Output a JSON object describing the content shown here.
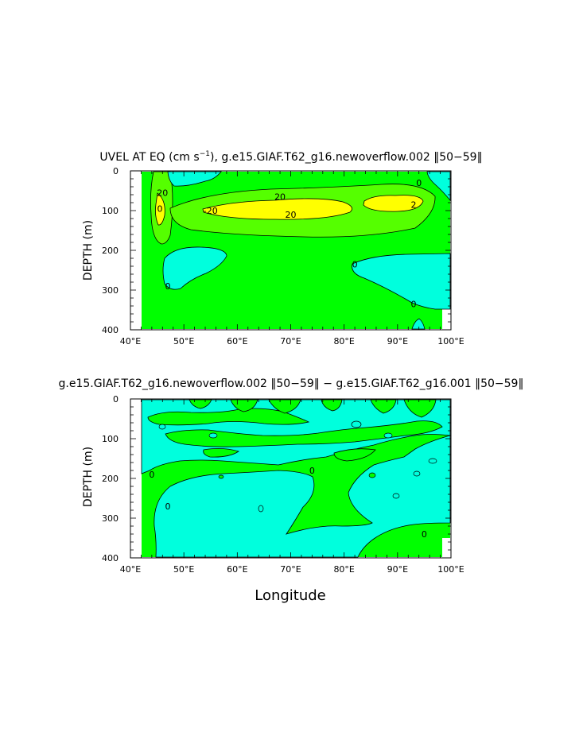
{
  "panels": [
    {
      "title_main": "UVEL AT EQ (cm s",
      "title_exp": "−1",
      "title_rest": "), g.e15.GIAF.T62_g16.newoverflow.002 ‖50−59‖"
    },
    {
      "title_main": "g.e15.GIAF.T62_g16.newoverflow.002 ‖50−59‖ − g.e15.GIAF.T62_g16.001 ‖50−59‖",
      "title_exp": "",
      "title_rest": ""
    }
  ],
  "colors": {
    "green": "#00ff00",
    "cyan": "#00ffdd",
    "yellow": "#ffff00",
    "cyan_light": "#00ffff"
  },
  "chart_data": [
    {
      "type": "contour",
      "title": "UVEL AT EQ (cm s−1), g.e15.GIAF.T62_g16.newoverflow.002 ‖50−59‖",
      "ylabel": "DEPTH (m)",
      "xlabel": "",
      "x_ticks": [
        "40°E",
        "50°E",
        "60°E",
        "70°E",
        "80°E",
        "90°E",
        "100°E"
      ],
      "y_ticks": [
        "0",
        "100",
        "200",
        "300",
        "400"
      ],
      "xlim": [
        40,
        100
      ],
      "ylim": [
        400,
        0
      ],
      "contour_labels": [
        {
          "text": "20",
          "lon": 46,
          "depth": 55
        },
        {
          "text": "0",
          "lon": 45.5,
          "depth": 95
        },
        {
          "text": "20",
          "lon": 68,
          "depth": 65
        },
        {
          "text": "20",
          "lon": 70,
          "depth": 110
        },
        {
          "text": "-20",
          "lon": 55,
          "depth": 100
        },
        {
          "text": "2",
          "lon": 93,
          "depth": 85
        },
        {
          "text": "0",
          "lon": 94,
          "depth": 30
        },
        {
          "text": "0",
          "lon": 82,
          "depth": 235
        },
        {
          "text": "0",
          "lon": 47,
          "depth": 290
        },
        {
          "text": "0",
          "lon": 93,
          "depth": 335
        }
      ]
    },
    {
      "type": "contour",
      "title": "g.e15.GIAF.T62_g16.newoverflow.002 ‖50−59‖ − g.e15.GIAF.T62_g16.001 ‖50−59‖",
      "ylabel": "DEPTH (m)",
      "xlabel": "Longitude",
      "x_ticks": [
        "40°E",
        "50°E",
        "60°E",
        "70°E",
        "80°E",
        "90°E",
        "100°E"
      ],
      "y_ticks": [
        "0",
        "100",
        "200",
        "300",
        "400"
      ],
      "xlim": [
        40,
        100
      ],
      "ylim": [
        400,
        0
      ],
      "contour_labels": [
        {
          "text": "0",
          "lon": 44,
          "depth": 190
        },
        {
          "text": "0",
          "lon": 47,
          "depth": 270
        },
        {
          "text": "0",
          "lon": 74,
          "depth": 180
        },
        {
          "text": "0",
          "lon": 95,
          "depth": 340
        }
      ]
    }
  ]
}
